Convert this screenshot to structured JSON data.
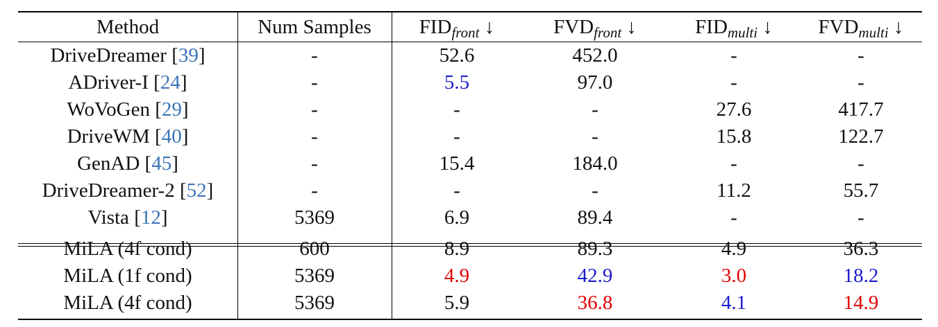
{
  "header": {
    "method": "Method",
    "num_samples": "Num Samples",
    "cols": [
      {
        "base": "FID",
        "sub": "front",
        "arrow": "↓"
      },
      {
        "base": "FVD",
        "sub": "front",
        "arrow": "↓"
      },
      {
        "base": "FID",
        "sub": "multi",
        "arrow": "↓"
      },
      {
        "base": "FVD",
        "sub": "multi",
        "arrow": "↓"
      }
    ]
  },
  "rows": [
    {
      "name": "DriveDreamer",
      "ref": "39",
      "samples": "-",
      "fid_front": "52.6",
      "fvd_front": "452.0",
      "fid_multi": "-",
      "fvd_multi": "-"
    },
    {
      "name": "ADriver-I",
      "ref": "24",
      "samples": "-",
      "fid_front": "5.5",
      "fvd_front": "97.0",
      "fid_multi": "-",
      "fvd_multi": "-"
    },
    {
      "name": "WoVoGen",
      "ref": "29",
      "samples": "-",
      "fid_front": "-",
      "fvd_front": "-",
      "fid_multi": "27.6",
      "fvd_multi": "417.7"
    },
    {
      "name": "DriveWM",
      "ref": "40",
      "samples": "-",
      "fid_front": "-",
      "fvd_front": "-",
      "fid_multi": "15.8",
      "fvd_multi": "122.7"
    },
    {
      "name": "GenAD",
      "ref": "45",
      "samples": "-",
      "fid_front": "15.4",
      "fvd_front": "184.0",
      "fid_multi": "-",
      "fvd_multi": "-"
    },
    {
      "name": "DriveDreamer-2",
      "ref": "52",
      "samples": "-",
      "fid_front": "-",
      "fvd_front": "-",
      "fid_multi": "11.2",
      "fvd_multi": "55.7"
    },
    {
      "name": "Vista",
      "ref": "12",
      "samples": "5369",
      "fid_front": "6.9",
      "fvd_front": "89.4",
      "fid_multi": "-",
      "fvd_multi": "-"
    },
    {
      "name": "MiLA (4f cond)",
      "ref": "",
      "samples": "600",
      "fid_front": "8.9",
      "fvd_front": "89.3",
      "fid_multi": "4.9",
      "fvd_multi": "36.3"
    },
    {
      "name": "MiLA (1f cond)",
      "ref": "",
      "samples": "5369",
      "fid_front": "4.9",
      "fvd_front": "42.9",
      "fid_multi": "3.0",
      "fvd_multi": "18.2"
    },
    {
      "name": "MiLA (4f cond)",
      "ref": "",
      "samples": "5369",
      "fid_front": "5.9",
      "fvd_front": "36.8",
      "fid_multi": "4.1",
      "fvd_multi": "14.9"
    }
  ],
  "highlight_colors": {
    "best": "#e00000",
    "second": "#1a1acd",
    "citation": "#3a73b5"
  }
}
